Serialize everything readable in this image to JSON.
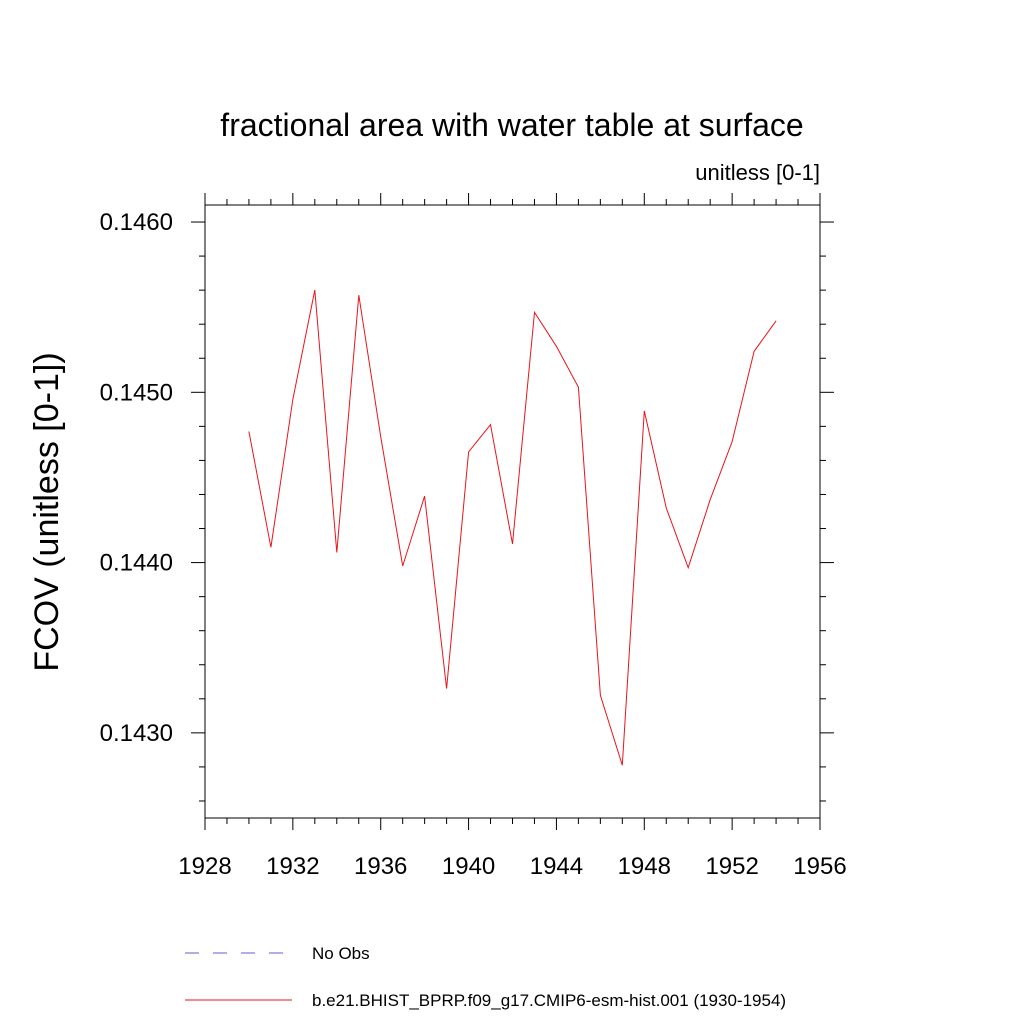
{
  "chart_data": {
    "type": "line",
    "title": "fractional area with water table at surface",
    "subtitle": "unitless [0-1]",
    "ylabel": "FCOV  (unitless [0-1])",
    "xlabel": "",
    "xlim": [
      1928,
      1956
    ],
    "ylim": [
      0.1425,
      0.1461
    ],
    "x_ticks": [
      1928,
      1932,
      1936,
      1940,
      1944,
      1948,
      1952,
      1956
    ],
    "x_tick_labels": [
      "1928",
      "1932",
      "1936",
      "1940",
      "1944",
      "1948",
      "1952",
      "1956"
    ],
    "x_minor_step": 1,
    "y_ticks": [
      0.143,
      0.144,
      0.145,
      0.146
    ],
    "y_tick_labels": [
      "0.1430",
      "0.1440",
      "0.1450",
      "0.1460"
    ],
    "y_minor_step": 0.0002,
    "series": [
      {
        "name": "b.e21.BHIST_BPRP.f09_g17.CMIP6-esm-hist.001 (1930-1954)",
        "color": "#e8141b",
        "x": [
          1930,
          1931,
          1932,
          1933,
          1934,
          1935,
          1936,
          1937,
          1938,
          1939,
          1940,
          1941,
          1942,
          1943,
          1944,
          1945,
          1946,
          1947,
          1948,
          1949,
          1950,
          1951,
          1952,
          1953,
          1954
        ],
        "values": [
          0.14477,
          0.14409,
          0.14496,
          0.1456,
          0.14406,
          0.14557,
          0.14474,
          0.14398,
          0.14439,
          0.14326,
          0.14465,
          0.14481,
          0.14411,
          0.14547,
          0.14527,
          0.14503,
          0.14322,
          0.14281,
          0.14489,
          0.14432,
          0.14397,
          0.14437,
          0.14471,
          0.14524,
          0.14542
        ]
      }
    ],
    "legend": [
      {
        "label": "No Obs",
        "style": "dashed",
        "color": "#6a5acd"
      },
      {
        "label": "b.e21.BHIST_BPRP.f09_g17.CMIP6-esm-hist.001 (1930-1954)",
        "style": "solid",
        "color": "#e8141b"
      }
    ]
  }
}
